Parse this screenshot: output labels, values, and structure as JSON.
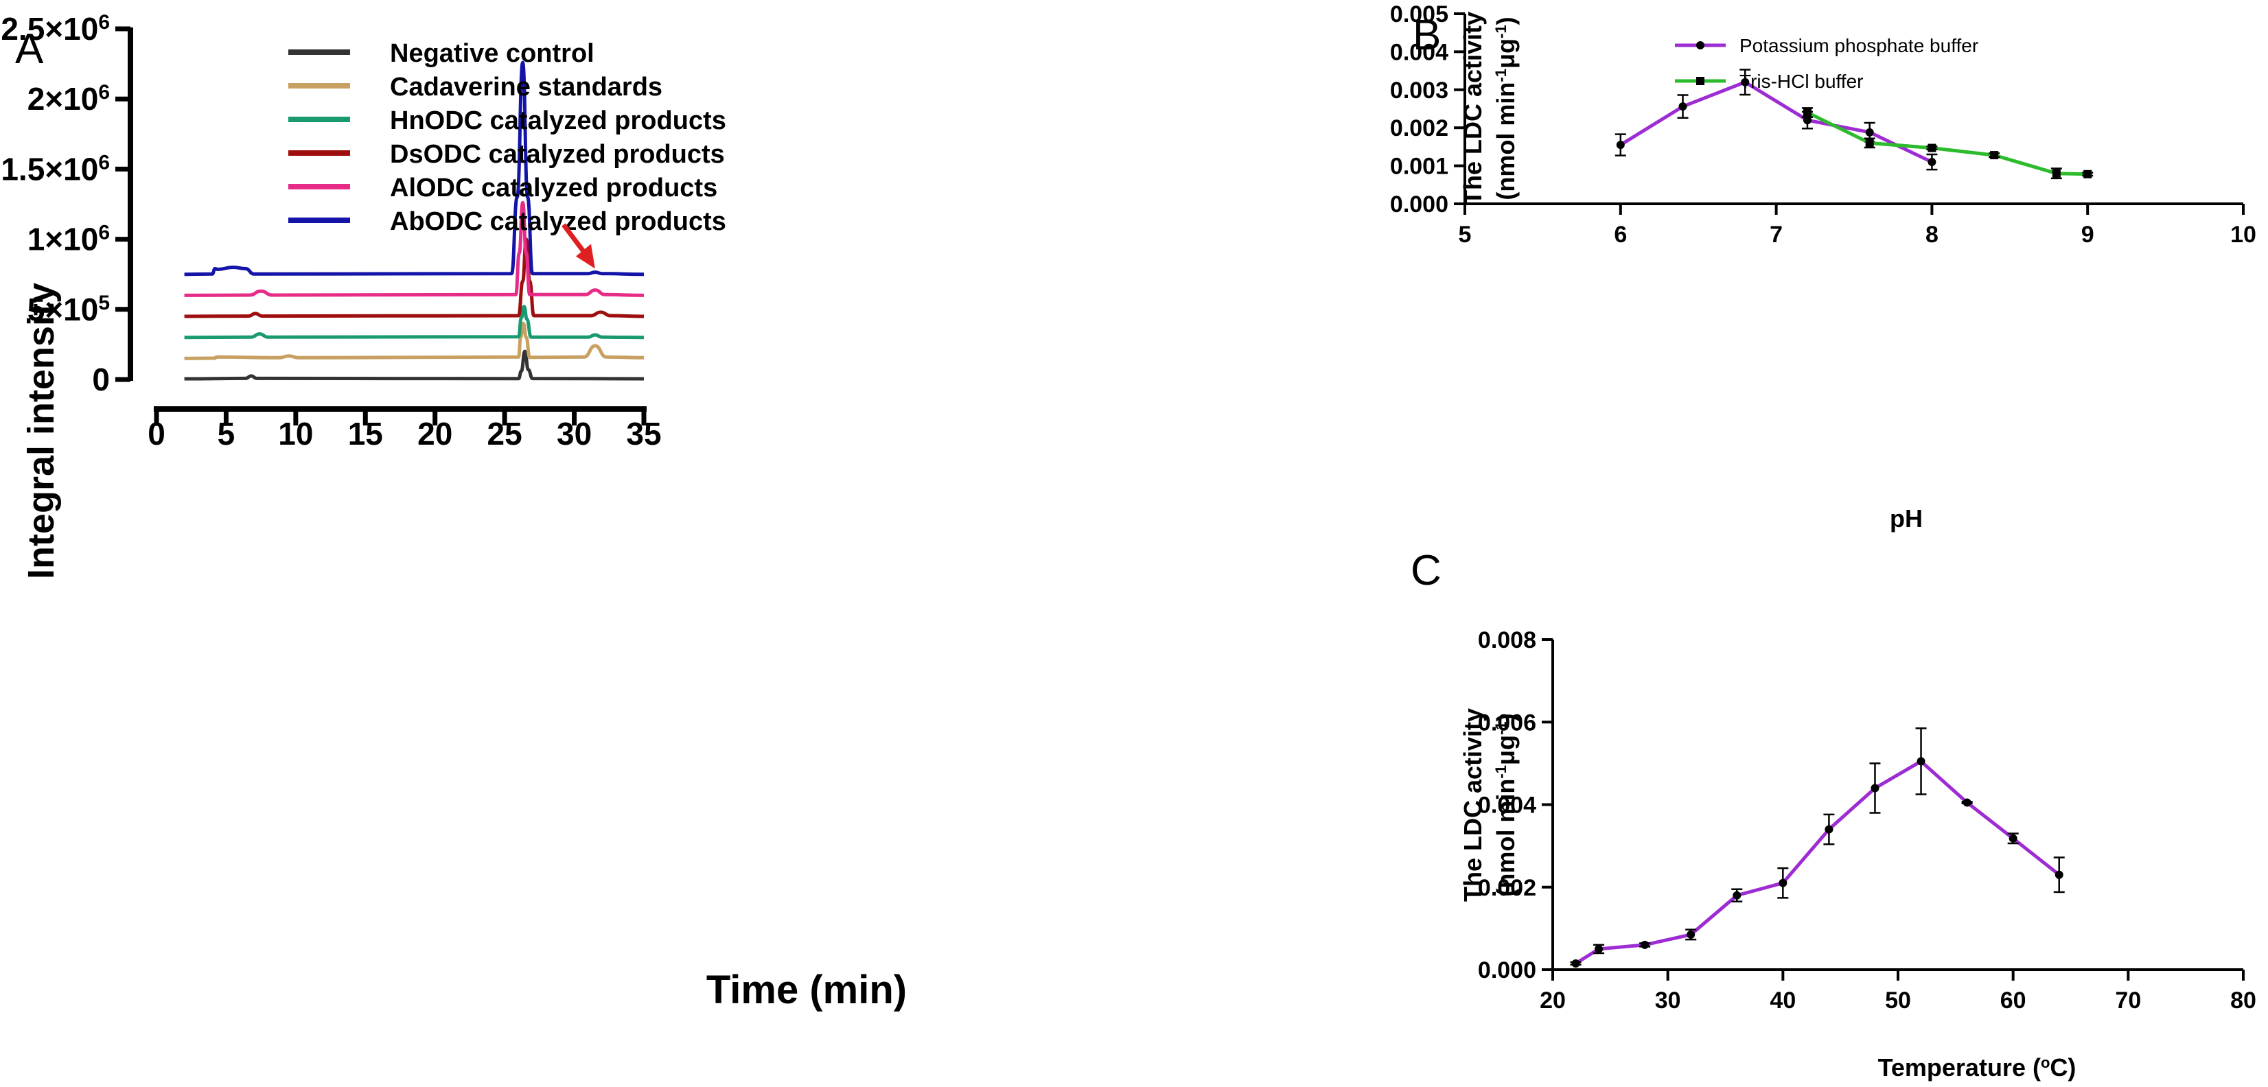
{
  "chart_data": [
    {
      "panel": "A",
      "type": "line",
      "xlabel": "Time (min)",
      "ylabel": "Integral intensity",
      "xlim": [
        0,
        35
      ],
      "ylim": [
        0,
        2500000
      ],
      "xticks": [
        "0",
        "5",
        "10",
        "15",
        "20",
        "25",
        "30",
        "35"
      ],
      "yticks": [
        {
          "base": "0",
          "exp": ""
        },
        {
          "base": "5×10",
          "exp": "5"
        },
        {
          "base": "1×10",
          "exp": "6"
        },
        {
          "base": "1.5×10",
          "exp": "6"
        },
        {
          "base": "2×10",
          "exp": "6"
        },
        {
          "base": "2.5×10",
          "exp": "6"
        }
      ],
      "legend_position": "top-left",
      "series": [
        {
          "name": "Negative control",
          "color": "#333333",
          "x": [
            2,
            6.4,
            6.8,
            7.2,
            26,
            26.2,
            26.45,
            26.7,
            27,
            35
          ],
          "y": [
            5000,
            8000,
            25000,
            8000,
            6000,
            60000,
            200000,
            70000,
            7000,
            5000
          ]
        },
        {
          "name": "Cadaverine standards",
          "color": "#C8A062",
          "x": [
            2,
            4.2,
            4.3,
            8.8,
            9.5,
            10.2,
            26,
            26.15,
            26.35,
            26.55,
            26.8,
            30.7,
            31.5,
            32.3,
            35
          ],
          "y": [
            150000,
            152000,
            160000,
            155000,
            168000,
            155000,
            160000,
            300000,
            400000,
            300000,
            158000,
            160000,
            240000,
            160000,
            155000
          ]
        },
        {
          "name": "HnODC catalyzed products",
          "color": "#1A9A70",
          "x": [
            2,
            6.8,
            7.4,
            8,
            26,
            26.2,
            26.4,
            26.6,
            26.9,
            31,
            31.5,
            32,
            35
          ],
          "y": [
            300000,
            302000,
            325000,
            302000,
            305000,
            440000,
            520000,
            430000,
            302000,
            302000,
            318000,
            302000,
            300000
          ]
        },
        {
          "name": "DsODC catalyzed products",
          "color": "#9E0E0E",
          "x": [
            2,
            6.6,
            7.1,
            7.6,
            26,
            26.3,
            26.55,
            26.8,
            27.1,
            31.2,
            31.9,
            32.6,
            35
          ],
          "y": [
            450000,
            452000,
            470000,
            452000,
            455000,
            700000,
            1000000,
            700000,
            455000,
            455000,
            480000,
            455000,
            450000
          ]
        },
        {
          "name": "AlODC catalyzed products",
          "color": "#E62C87",
          "x": [
            2,
            6.7,
            7.5,
            8.3,
            25.8,
            26.05,
            26.3,
            26.55,
            26.8,
            30.8,
            31.5,
            32.2,
            35
          ],
          "y": [
            600000,
            602000,
            630000,
            602000,
            605000,
            900000,
            1260000,
            900000,
            605000,
            605000,
            638000,
            605000,
            600000
          ]
        },
        {
          "name": "AbODC catalyzed products",
          "color": "#1414A8",
          "x": [
            2,
            4,
            4.2,
            4.4,
            5.5,
            6.4,
            7,
            25.5,
            25.9,
            26.3,
            26.65,
            27,
            31,
            31.5,
            32,
            35
          ],
          "y": [
            750000,
            752000,
            790000,
            785000,
            800000,
            790000,
            752000,
            755000,
            1300000,
            2260000,
            1300000,
            755000,
            755000,
            765000,
            755000,
            750000
          ]
        }
      ],
      "annotations": [
        {
          "type": "arrow",
          "color": "#E02020",
          "points_to": [
            31.2,
            800000
          ]
        }
      ]
    },
    {
      "panel": "B",
      "type": "line",
      "xlabel": "pH",
      "ylabel": [
        "The LDC activity",
        "(nmol min",
        "-1",
        "μg",
        "-1",
        ")"
      ],
      "xlim": [
        5,
        10
      ],
      "ylim": [
        0,
        0.005
      ],
      "xticks": [
        "5",
        "6",
        "7",
        "8",
        "9",
        "10"
      ],
      "yticks": [
        "0.000",
        "0.001",
        "0.002",
        "0.003",
        "0.004",
        "0.005"
      ],
      "legend_position": "top-left",
      "series": [
        {
          "name": "Potassium phosphate buffer",
          "color": "#9D2CD3",
          "marker": "circle",
          "x": [
            6,
            6.4,
            6.8,
            7.2,
            7.6,
            8
          ],
          "y": [
            0.00155,
            0.00256,
            0.0032,
            0.0022,
            0.00188,
            0.0011
          ],
          "err": [
            0.00028,
            0.0003,
            0.00033,
            0.00022,
            0.00025,
            0.0002
          ]
        },
        {
          "name": "Tris-HCl buffer",
          "color": "#2BBB2B",
          "marker": "square",
          "x": [
            7.2,
            7.6,
            8,
            8.4,
            8.8,
            9
          ],
          "y": [
            0.0024,
            0.0016,
            0.00147,
            0.00128,
            0.0008,
            0.00078
          ],
          "err": [
            0.00012,
            0.00012,
            4e-05,
            5e-05,
            0.00013,
            4e-05
          ]
        }
      ]
    },
    {
      "panel": "C",
      "type": "line",
      "xlabel": [
        "Temperature (",
        "o",
        "C)"
      ],
      "ylabel": [
        "The LDC activity",
        "(nmol min",
        "-1",
        "μg",
        "-1",
        ")"
      ],
      "xlim": [
        20,
        80
      ],
      "ylim": [
        0,
        0.008
      ],
      "xticks": [
        "20",
        "30",
        "40",
        "50",
        "60",
        "70",
        "80"
      ],
      "yticks": [
        "0.000",
        "0.002",
        "0.004",
        "0.006",
        "0.008"
      ],
      "series": [
        {
          "name": "",
          "color": "#9D2CD3",
          "marker": "circle",
          "x": [
            22,
            24,
            28,
            32,
            36,
            40,
            44,
            48,
            52,
            56,
            60,
            64
          ],
          "y": [
            0.00015,
            0.0005,
            0.0006,
            0.00085,
            0.0018,
            0.0021,
            0.0034,
            0.0044,
            0.00505,
            0.00405,
            0.00318,
            0.0023
          ],
          "err": [
            3e-05,
            0.0001,
            4e-05,
            0.00012,
            0.00015,
            0.00036,
            0.00036,
            0.0006,
            0.0008,
            2e-05,
            0.00012,
            0.00042
          ]
        }
      ]
    }
  ],
  "panel_labels": {
    "a": "A",
    "b": "B",
    "c": "C"
  }
}
